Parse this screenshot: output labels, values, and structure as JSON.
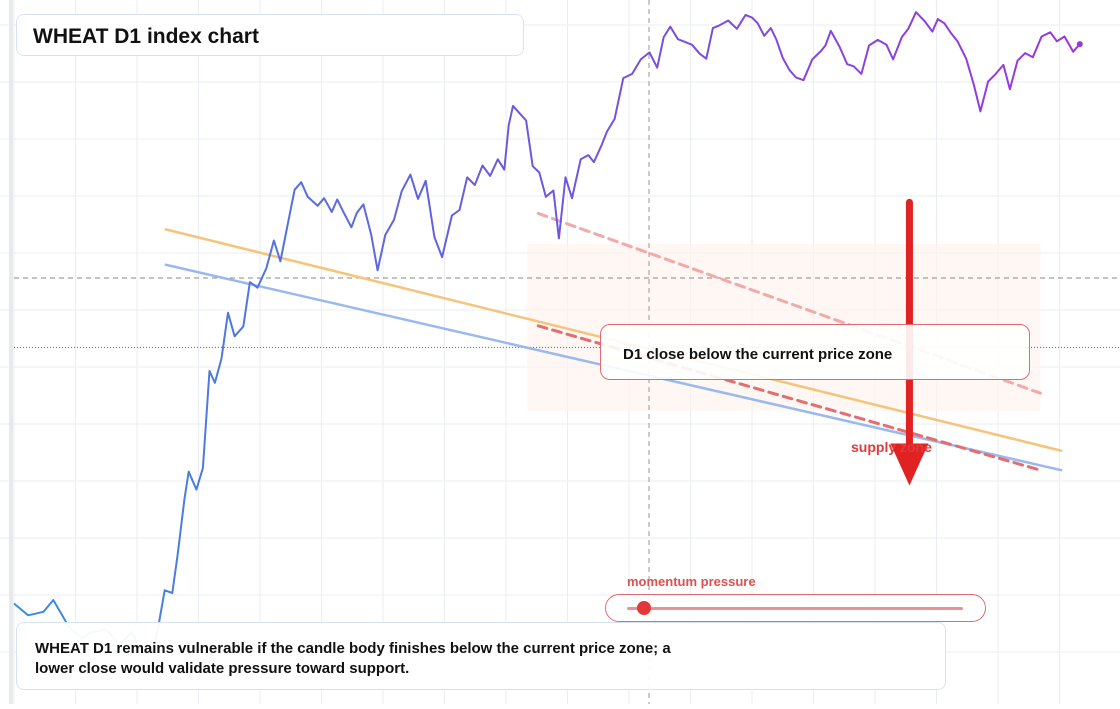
{
  "chart_data": {
    "type": "line",
    "title": "WHEAT D1 index chart",
    "xlabel": "",
    "ylabel": "",
    "x_range": [
      0,
      100
    ],
    "y_range": [
      0,
      100
    ],
    "grid": true,
    "price_series": {
      "color_early": "#3a8fe0",
      "color_late": "#9b35e0",
      "x": [
        0,
        1.3,
        2.7,
        3.6,
        5,
        6.2,
        7,
        8.4,
        9.7,
        10.8,
        11.7,
        12.7,
        13.2,
        13.8,
        14.5,
        15,
        15.6,
        16,
        16.7,
        17.3,
        17.9,
        18.4,
        19,
        19.6,
        20.2,
        21,
        21.6,
        22.3,
        23.1,
        23.8,
        24.4,
        24.9,
        25.7,
        26.3,
        26.9,
        27.8,
        28.4,
        29.1,
        29.6,
        30.2,
        30.9,
        31.4,
        32,
        32.7,
        33.3,
        34,
        34.8,
        35.5,
        36.3,
        37,
        37.7,
        38.5,
        39.2,
        40.1,
        40.8,
        41.5,
        42.2,
        42.9,
        43.6,
        44.3,
        44.9,
        45.3,
        45.7,
        46.2,
        46.9,
        47.5,
        48.1,
        48.7,
        49.4,
        49.9,
        50.5,
        51.1,
        51.9,
        52.6,
        53.1,
        53.8,
        54.3,
        55,
        55.8,
        56.6,
        57.4,
        58.2,
        58.9,
        59.5,
        60.1,
        60.8,
        61.3,
        62.1,
        62.8,
        63.4,
        64,
        64.6,
        65.4,
        66.2,
        67,
        67.6,
        68.1,
        68.7,
        69.3,
        69.8,
        70.4,
        71,
        71.6,
        72.3,
        73.1,
        73.9,
        74.3,
        74.8,
        75.6,
        76.3,
        76.9,
        77.6,
        78.3,
        79.1,
        79.9,
        80.5,
        81.3,
        81.9,
        82.6,
        83.4,
        84.1,
        84.6,
        85.2,
        85.8,
        86.4,
        87.2,
        87.9,
        88.5,
        89.2,
        89.9,
        90.6,
        91.2,
        91.9,
        92.6,
        93.3,
        94.1,
        94.9,
        95.5,
        96.2,
        97,
        97.6
      ],
      "y": [
        14.2,
        12.5,
        13,
        14.7,
        10.9,
        9.2,
        10,
        10.4,
        8.3,
        10.1,
        7.1,
        7.2,
        10.7,
        16.1,
        15.7,
        21.4,
        29.2,
        33.2,
        30.6,
        33.7,
        47.7,
        46,
        49.5,
        56.1,
        52.7,
        54.1,
        60.5,
        59.7,
        62.5,
        66.5,
        63.5,
        67.5,
        73.8,
        74.9,
        72.8,
        71.5,
        72.6,
        70.6,
        72.4,
        70.5,
        68.4,
        70.5,
        71.7,
        67.4,
        62.2,
        67.3,
        69.5,
        73.6,
        76,
        72.5,
        75.1,
        67,
        64.1,
        70.1,
        70.9,
        75.6,
        74.5,
        77.3,
        75.8,
        78.2,
        76.7,
        83.1,
        85.9,
        85,
        83.8,
        77.2,
        76.3,
        72.8,
        73.7,
        66.8,
        75.6,
        72.6,
        78.2,
        78.8,
        77.8,
        80.2,
        82.2,
        84,
        89.9,
        90.5,
        92.6,
        93.6,
        91.4,
        95.8,
        97.3,
        95.5,
        95.2,
        94.7,
        93.4,
        92.7,
        97.1,
        97.5,
        98.2,
        97,
        99,
        98.6,
        97.8,
        96,
        97.1,
        95.5,
        92.8,
        91.1,
        90,
        89.6,
        92.6,
        93.8,
        94.6,
        96.7,
        94.4,
        91.9,
        91.6,
        90.5,
        94.6,
        95.4,
        94.7,
        92.6,
        95.8,
        97,
        99.4,
        98.1,
        96.6,
        98.4,
        97.8,
        96.4,
        95.2,
        92.7,
        88.9,
        85.1,
        89.4,
        90.5,
        91.8,
        88.3,
        92.4,
        93.5,
        92.9,
        95.9,
        96.5,
        95.2,
        95.9,
        93.7,
        94.8
      ]
    },
    "trendlines": [
      {
        "color": "#f6c37a",
        "from": [
          13.9,
          68.1
        ],
        "to": [
          95.9,
          36.2
        ]
      },
      {
        "color": "#9ab8f0",
        "from": [
          13.9,
          63
        ],
        "to": [
          95.9,
          33.4
        ]
      },
      {
        "color": "#e46e6e",
        "dashed": true,
        "from": [
          48,
          54.2
        ],
        "to": [
          94,
          33.4
        ]
      },
      {
        "color": "#f3a9a9",
        "dashed": true,
        "from": [
          48,
          70.4
        ],
        "to": [
          94,
          44.5
        ]
      }
    ],
    "current_price_line": 51.1,
    "guide_line_y": 61.1,
    "zone": {
      "x": [
        47,
        94
      ],
      "y": [
        42,
        66
      ]
    },
    "arrow": {
      "color": "#e02222",
      "x": 82,
      "from_y": 72,
      "to_y": 31.2
    },
    "last_point_color": "#9b35e0",
    "labels": {
      "callout": "D1 close below the current price zone",
      "supply": "supply zone",
      "momentum": "momentum pressure",
      "caption": "WHEAT D1 remains vulnerable if the candle body finishes below the current price zone; a lower close would validate pressure toward support."
    },
    "momentum_value": 0.05
  }
}
